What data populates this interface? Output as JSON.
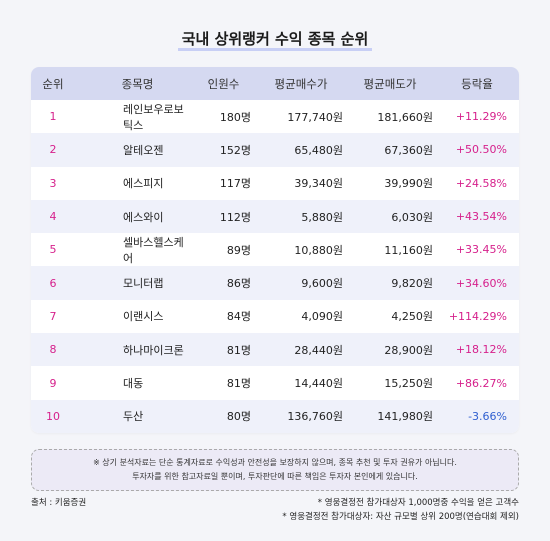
{
  "title": "국내 상위랭커 수익 종목 순위",
  "table": {
    "headers": {
      "rank": "순위",
      "name": "종목명",
      "people": "인원수",
      "avg_buy": "평균매수가",
      "avg_sell": "평균매도가",
      "change": "등락율"
    },
    "rows": [
      {
        "rank": "1",
        "name": "레인보우로보틱스",
        "people": "180명",
        "avg_buy": "177,740원",
        "avg_sell": "181,660원",
        "change": "+11.29%"
      },
      {
        "rank": "2",
        "name": "알테오젠",
        "people": "152명",
        "avg_buy": "65,480원",
        "avg_sell": "67,360원",
        "change": "+50.50%"
      },
      {
        "rank": "3",
        "name": "에스피지",
        "people": "117명",
        "avg_buy": "39,340원",
        "avg_sell": "39,990원",
        "change": "+24.58%"
      },
      {
        "rank": "4",
        "name": "에스와이",
        "people": "112명",
        "avg_buy": "5,880원",
        "avg_sell": "6,030원",
        "change": "+43.54%"
      },
      {
        "rank": "5",
        "name": "셀바스헬스케어",
        "people": "89명",
        "avg_buy": "10,880원",
        "avg_sell": "11,160원",
        "change": "+33.45%"
      },
      {
        "rank": "6",
        "name": "모니터랩",
        "people": "86명",
        "avg_buy": "9,600원",
        "avg_sell": "9,820원",
        "change": "+34.60%"
      },
      {
        "rank": "7",
        "name": "이랜시스",
        "people": "84명",
        "avg_buy": "4,090원",
        "avg_sell": "4,250원",
        "change": "+114.29%"
      },
      {
        "rank": "8",
        "name": "하나마이크론",
        "people": "81명",
        "avg_buy": "28,440원",
        "avg_sell": "28,900원",
        "change": "+18.12%"
      },
      {
        "rank": "9",
        "name": "대동",
        "people": "81명",
        "avg_buy": "14,440원",
        "avg_sell": "15,250원",
        "change": "+86.27%"
      },
      {
        "rank": "10",
        "name": "두산",
        "people": "80명",
        "avg_buy": "136,760원",
        "avg_sell": "141,980원",
        "change": "-3.66%"
      }
    ]
  },
  "notice": {
    "line1": "※ 상기 분석자료는 단순 통계자료로 수익성과 안전성을 보장하지 않으며, 종목 추천 및 투자 권유가 아닙니다.",
    "line2": "투자자를 위한 참고자료일 뿐이며, 투자판단에 따른 책임은 투자자 본인에게 있습니다."
  },
  "source": "출처 : 키움증권",
  "footnotes": [
    "* 영웅결정전 참가대상자 1,000명중 수익을 얻은 고객수",
    "* 영웅결정전 참가대상자: 자산 규모별 상위 200명(연습대회 제외)"
  ],
  "colors": {
    "header_bg": "#d5d9f1",
    "alt_row_bg": "#eff1fa",
    "rank_color": "#d6218c",
    "positive": "#d6218c",
    "negative": "#2f5fd0"
  }
}
